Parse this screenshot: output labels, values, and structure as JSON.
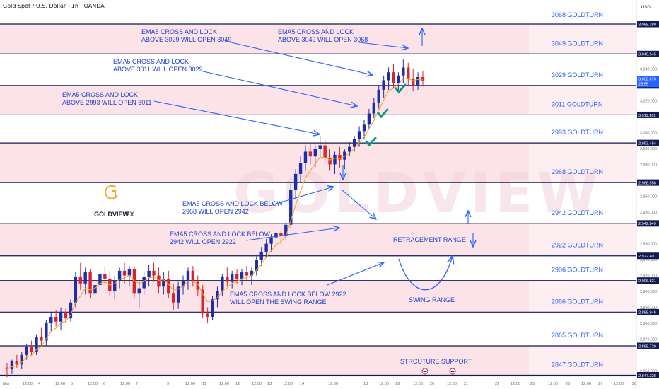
{
  "header": {
    "symbol": "Gold Spot / U.S. Dollar · 1h · OANDA",
    "currency": "USD"
  },
  "logo": {
    "brand": "GOLDVIEW",
    "suffix": "FX",
    "watermark": "GOLDVIEW"
  },
  "countdown": "25:55",
  "colors": {
    "band": "#fbe3e8",
    "line": "#131a4f",
    "label": "#2962ff",
    "arrow": "#2962ff",
    "check": "#089981",
    "up": "#1d2ea8",
    "down": "#d9232e",
    "ema": "#f5a623",
    "logo": "#f5a623"
  },
  "chart_data": {
    "type": "candlestick",
    "y_range": [
      2842,
      3078
    ],
    "bands": [
      [
        3049.545,
        3068.38
      ],
      [
        3011.162,
        3029.707
      ],
      [
        2968.556,
        2993.484
      ],
      [
        2922.401,
        2942.849
      ],
      [
        2886.946,
        2906.821
      ],
      [
        2847.228,
        2865.729
      ]
    ],
    "levels": [
      {
        "value": 3068.38,
        "text": "3068 GOLDTURN",
        "tag": "3,068.380"
      },
      {
        "value": 3049.545,
        "text": "3049 GOLDTURN",
        "tag": "3,049.545"
      },
      {
        "value": 3029.707,
        "text": "3029 GOLDTURN",
        "tag": "3,029.707"
      },
      {
        "value": 3011.162,
        "text": "3011 GOLDTURN",
        "tag": "3,011.162"
      },
      {
        "value": 2993.484,
        "text": "2993 GOLDTURN",
        "tag": "2,993.484"
      },
      {
        "value": 2968.556,
        "text": "2968 GOLDTURN",
        "tag": "2,968.556"
      },
      {
        "value": 2942.849,
        "text": "2942 GOLDTURN",
        "tag": "2,942.849"
      },
      {
        "value": 2922.401,
        "text": "2922 GOLDTURN",
        "tag": "2,922.401"
      },
      {
        "value": 2906.821,
        "text": "2906 GOLDTURN",
        "tag": "2,906.821"
      },
      {
        "value": 2886.946,
        "text": "2886 GOLDTURN",
        "tag": "2,886.946"
      },
      {
        "value": 2865.729,
        "text": "2865 GOLDTURN",
        "tag": "2,865.729"
      },
      {
        "value": 2847.228,
        "text": "2847 GOLDTURN",
        "tag": "2,847.228"
      }
    ],
    "current_price": {
      "value": 3032.67,
      "tag": "3,032.670"
    },
    "y_ticks": [
      3040,
      3030,
      3020,
      3000,
      2990,
      2980,
      2960,
      2950,
      2930,
      2920,
      2910,
      2900,
      2890,
      2880,
      2870,
      2850
    ],
    "x_ticks": [
      "Mar",
      "12:00",
      "4",
      "12:00",
      "5",
      "12:00",
      "6",
      "12:00",
      "7",
      "9",
      "12:00",
      "11",
      "12:00",
      "12",
      "12:00",
      "13",
      "12:00",
      "14",
      "12:00",
      "18",
      "12:00",
      "19",
      "12:00",
      "20",
      "12:00",
      "21",
      "23",
      "12:00",
      "25",
      "12:00",
      "26",
      "12:00",
      "27",
      "12:00",
      "28"
    ],
    "candles": [
      [
        2852,
        2855,
        2846,
        2851
      ],
      [
        2851,
        2857,
        2848,
        2856
      ],
      [
        2856,
        2860,
        2852,
        2854
      ],
      [
        2854,
        2862,
        2851,
        2860
      ],
      [
        2860,
        2867,
        2857,
        2865
      ],
      [
        2865,
        2869,
        2859,
        2862
      ],
      [
        2862,
        2873,
        2860,
        2871
      ],
      [
        2871,
        2877,
        2866,
        2869
      ],
      [
        2869,
        2882,
        2866,
        2880
      ],
      [
        2880,
        2887,
        2875,
        2884
      ],
      [
        2884,
        2888,
        2878,
        2881
      ],
      [
        2881,
        2890,
        2876,
        2887
      ],
      [
        2887,
        2889,
        2880,
        2883
      ],
      [
        2883,
        2895,
        2881,
        2893
      ],
      [
        2893,
        2912,
        2890,
        2909
      ],
      [
        2909,
        2918,
        2901,
        2905
      ],
      [
        2905,
        2915,
        2898,
        2912
      ],
      [
        2912,
        2914,
        2896,
        2899
      ],
      [
        2899,
        2908,
        2894,
        2904
      ],
      [
        2904,
        2914,
        2900,
        2911
      ],
      [
        2911,
        2916,
        2905,
        2908
      ],
      [
        2908,
        2913,
        2897,
        2900
      ],
      [
        2900,
        2910,
        2895,
        2907
      ],
      [
        2907,
        2915,
        2902,
        2913
      ],
      [
        2913,
        2918,
        2905,
        2910
      ],
      [
        2910,
        2916,
        2903,
        2914
      ],
      [
        2914,
        2916,
        2896,
        2899
      ],
      [
        2899,
        2906,
        2890,
        2902
      ],
      [
        2902,
        2912,
        2898,
        2909
      ],
      [
        2909,
        2917,
        2903,
        2913
      ],
      [
        2913,
        2918,
        2906,
        2910
      ],
      [
        2910,
        2915,
        2899,
        2903
      ],
      [
        2903,
        2912,
        2898,
        2908
      ],
      [
        2908,
        2913,
        2896,
        2899
      ],
      [
        2899,
        2905,
        2888,
        2893
      ],
      [
        2893,
        2906,
        2889,
        2903
      ],
      [
        2903,
        2910,
        2898,
        2907
      ],
      [
        2907,
        2915,
        2901,
        2913
      ],
      [
        2913,
        2916,
        2903,
        2906
      ],
      [
        2906,
        2910,
        2897,
        2901
      ],
      [
        2901,
        2904,
        2883,
        2886
      ],
      [
        2886,
        2890,
        2880,
        2884
      ],
      [
        2884,
        2897,
        2882,
        2895
      ],
      [
        2895,
        2903,
        2890,
        2900
      ],
      [
        2900,
        2911,
        2897,
        2909
      ],
      [
        2909,
        2915,
        2903,
        2906
      ],
      [
        2906,
        2913,
        2902,
        2911
      ],
      [
        2911,
        2914,
        2905,
        2908
      ],
      [
        2908,
        2914,
        2904,
        2912
      ],
      [
        2912,
        2916,
        2907,
        2910
      ],
      [
        2910,
        2915,
        2904,
        2913
      ],
      [
        2913,
        2922,
        2910,
        2920
      ],
      [
        2920,
        2928,
        2916,
        2925
      ],
      [
        2925,
        2933,
        2921,
        2930
      ],
      [
        2930,
        2936,
        2925,
        2934
      ],
      [
        2934,
        2940,
        2929,
        2937
      ],
      [
        2937,
        2939,
        2930,
        2935
      ],
      [
        2935,
        2944,
        2932,
        2942
      ],
      [
        2942,
        2968,
        2940,
        2964
      ],
      [
        2964,
        2977,
        2958,
        2974
      ],
      [
        2974,
        2985,
        2969,
        2981
      ],
      [
        2981,
        2992,
        2976,
        2988
      ],
      [
        2988,
        2994,
        2980,
        2985
      ],
      [
        2985,
        2992,
        2978,
        2990
      ],
      [
        2990,
        2998,
        2984,
        2992
      ],
      [
        2992,
        2996,
        2981,
        2984
      ],
      [
        2984,
        2990,
        2976,
        2980
      ],
      [
        2980,
        2988,
        2974,
        2986
      ],
      [
        2986,
        2991,
        2978,
        2983
      ],
      [
        2983,
        2990,
        2977,
        2988
      ],
      [
        2988,
        2994,
        2985,
        2991
      ],
      [
        2991,
        2998,
        2988,
        2996
      ],
      [
        2996,
        3004,
        2991,
        3001
      ],
      [
        3001,
        3008,
        2996,
        3005
      ],
      [
        3005,
        3015,
        3002,
        3012
      ],
      [
        3012,
        3022,
        3009,
        3019
      ],
      [
        3019,
        3030,
        3015,
        3027
      ],
      [
        3027,
        3036,
        3022,
        3033
      ],
      [
        3033,
        3041,
        3027,
        3038
      ],
      [
        3038,
        3043,
        3028,
        3031
      ],
      [
        3031,
        3038,
        3026,
        3036
      ],
      [
        3036,
        3046,
        3031,
        3041
      ],
      [
        3041,
        3044,
        3030,
        3034
      ],
      [
        3034,
        3040,
        3026,
        3030
      ],
      [
        3030,
        3038,
        3027,
        3035
      ],
      [
        3035,
        3039,
        3029,
        3032.67
      ]
    ],
    "ema5_color": "#f5a623",
    "annotations": [
      {
        "lines": [
          "EMA5 CROSS AND LOCK",
          "ABOVE 3029 WILL OPEN 3049"
        ]
      },
      {
        "lines": [
          "EMA5 CROSS AND LOCK",
          "ABOVE 3049 WILL OPEN 3068"
        ]
      },
      {
        "lines": [
          "EMA5 CROSS AND LOCK",
          "ABOVE 3011 WILL OPEN 3029"
        ]
      },
      {
        "lines": [
          "EMA5 CROSS AND LOCK",
          "ABOVE 2993 WILL OPEN 3011"
        ]
      },
      {
        "lines": [
          "EMA5 CROSS AND LOCK BELOW",
          "2968 WILL OPEN 2942"
        ]
      },
      {
        "lines": [
          "EMA5 CROSS AND LOCK BELOW",
          "2942 WILL OPEN 2922"
        ]
      },
      {
        "lines": [
          "RETRACEMENT RANGE"
        ]
      },
      {
        "lines": [
          "EMA5 CROSS AND LOCK BELOW 2922",
          "WILL OPEN THE SWING RANGE"
        ]
      },
      {
        "lines": [
          "SWING RANGE"
        ]
      },
      {
        "lines": [
          "STRCUTURE SUPPORT"
        ]
      }
    ]
  }
}
